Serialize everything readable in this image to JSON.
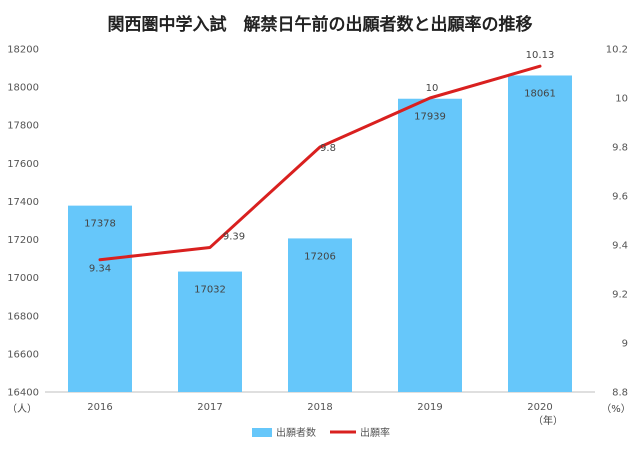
{
  "chart_data": {
    "type": "bar",
    "title": "関西圏中学入試　解禁日午前の出願者数と出願率の推移",
    "categories": [
      "2016",
      "2017",
      "2018",
      "2019",
      "2020"
    ],
    "x_unit": "（年）",
    "series": [
      {
        "name": "出願者数",
        "type": "bar",
        "axis": "left",
        "color": "#66c7fa",
        "values": [
          17378,
          17032,
          17206,
          17939,
          18061
        ],
        "labels": [
          "17378",
          "17032",
          "17206",
          "17939",
          "18061"
        ]
      },
      {
        "name": "出願率",
        "type": "line",
        "axis": "right",
        "color": "#d9201f",
        "values": [
          9.34,
          9.39,
          9.8,
          10.0,
          10.13
        ],
        "labels": [
          "9.34",
          "9.39",
          "9.8",
          "10",
          "10.13"
        ]
      }
    ],
    "y_left": {
      "unit": "（人）",
      "min": 16400,
      "max": 18200,
      "ticks": [
        "16400",
        "16600",
        "16800",
        "17000",
        "17200",
        "17400",
        "17600",
        "17800",
        "18000",
        "18200"
      ]
    },
    "y_right": {
      "unit": "（%）",
      "min": 8.8,
      "max": 10.2,
      "ticks": [
        "8.8",
        "9",
        "9.2",
        "9.4",
        "9.6",
        "9.8",
        "10",
        "10.2"
      ]
    },
    "grid": false,
    "legend": "bottom"
  }
}
